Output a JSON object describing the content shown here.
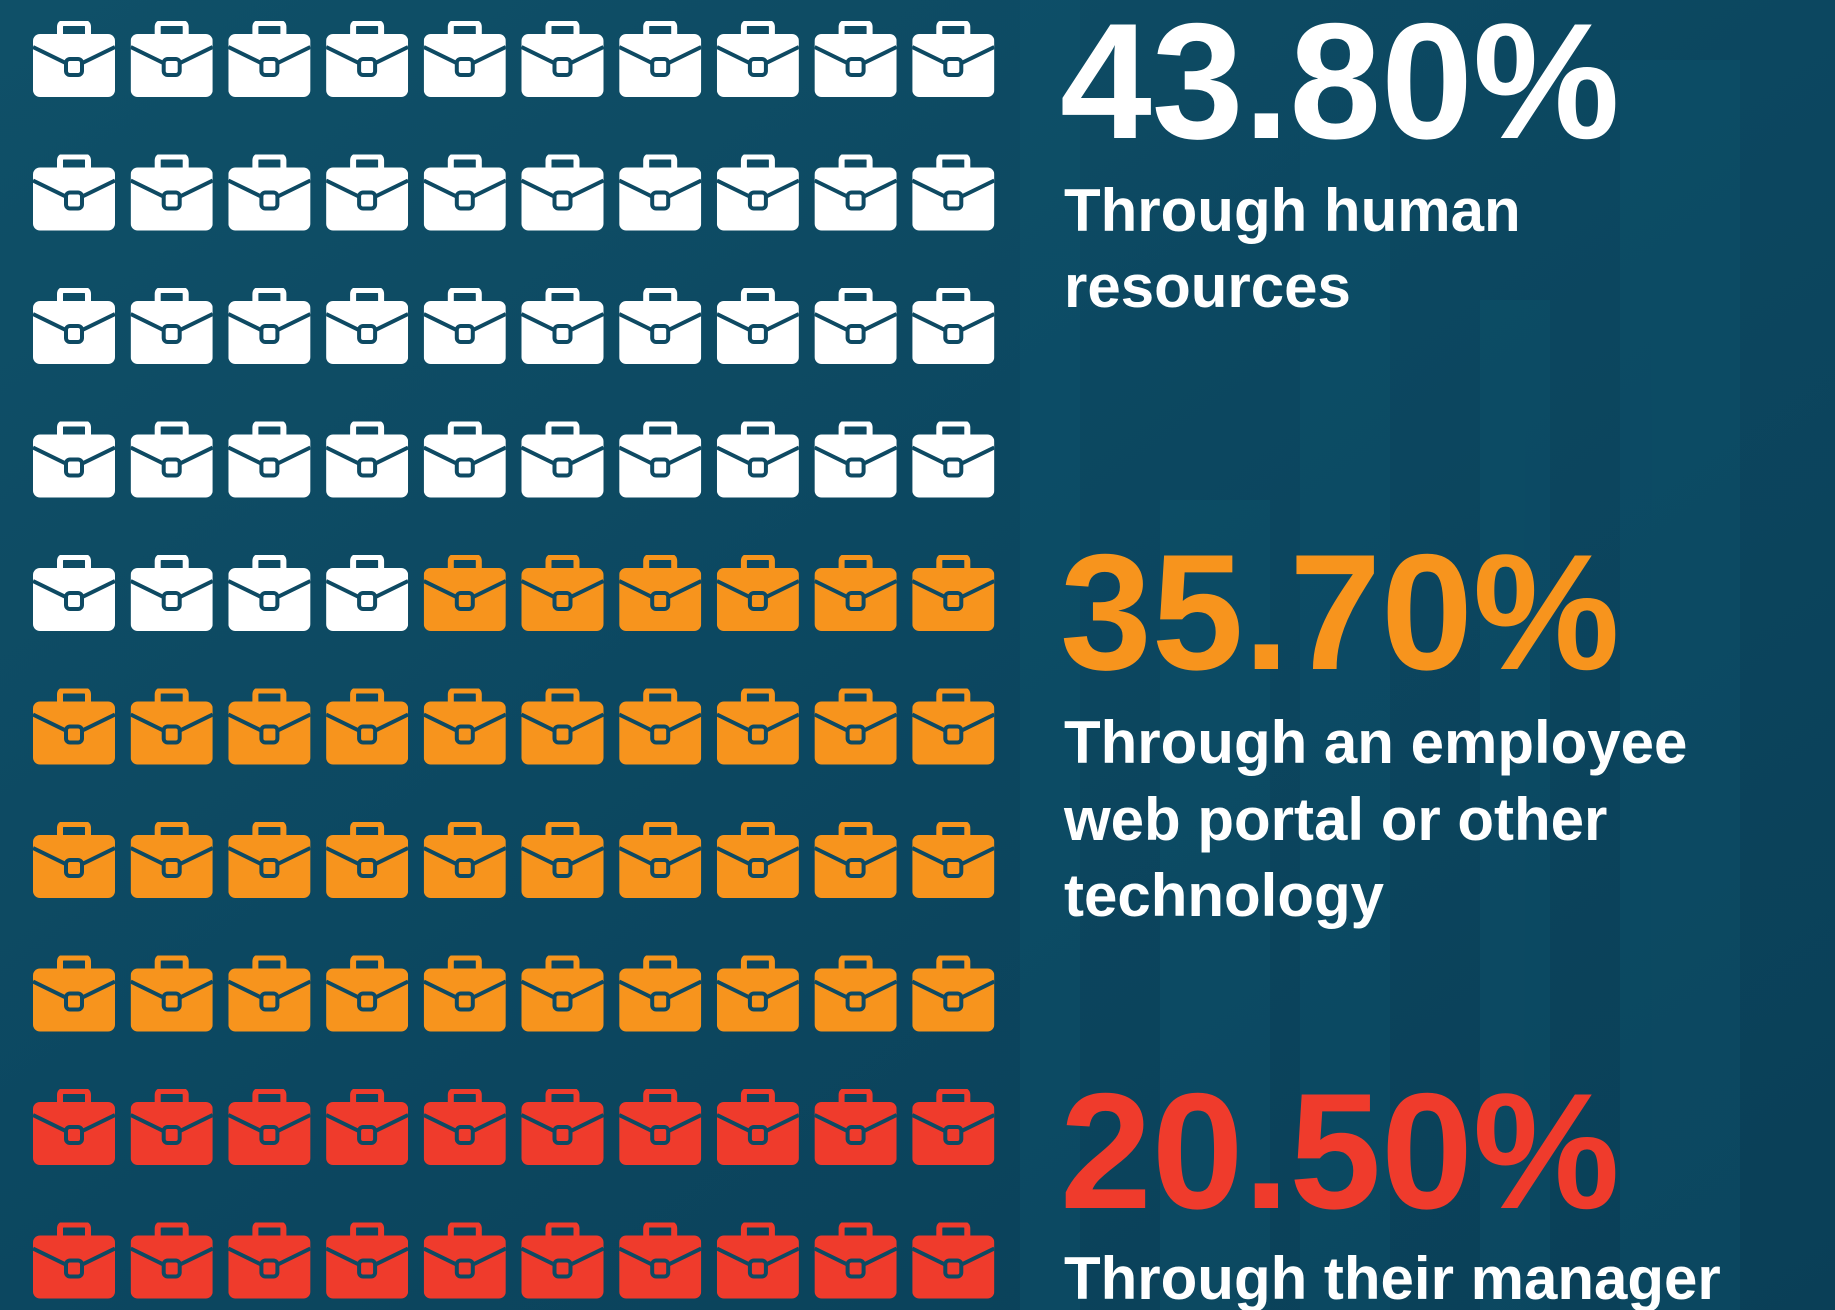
{
  "chart_data": {
    "type": "waffle",
    "series": [
      {
        "name": [
          "Through human",
          "resources"
        ],
        "color": "#ffffff",
        "values": [
          43.8
        ],
        "value_labels": [
          "43.80%"
        ]
      },
      {
        "name": [
          "Through an employee",
          "web portal or other",
          "technology"
        ],
        "color": "#f7941d",
        "values": [
          35.7
        ],
        "value_labels": [
          "35.70%"
        ]
      },
      {
        "name": [
          "Through their manager"
        ],
        "color": "#ef3b2c",
        "values": [
          20.5
        ],
        "value_labels": [
          "20.50%"
        ]
      }
    ]
  }
}
